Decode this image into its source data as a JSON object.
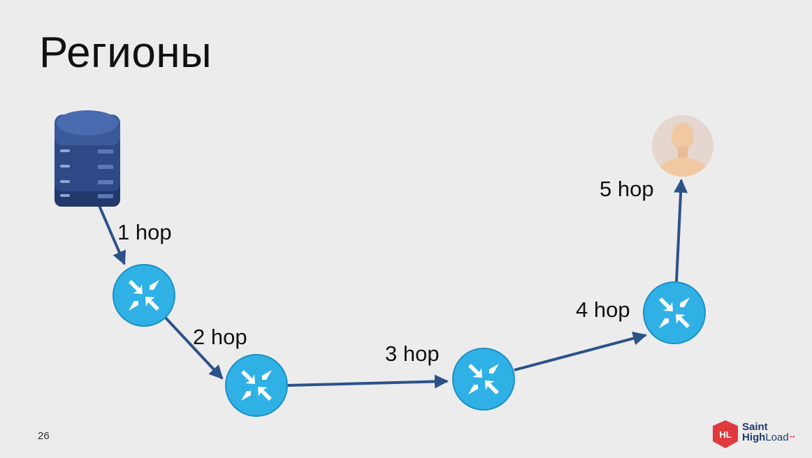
{
  "slide": {
    "title": "Регионы",
    "page_number": "26"
  },
  "diagram": {
    "nodes": [
      {
        "id": "server",
        "kind": "server-icon"
      },
      {
        "id": "router-1",
        "kind": "router-icon"
      },
      {
        "id": "router-2",
        "kind": "router-icon"
      },
      {
        "id": "router-3",
        "kind": "router-icon"
      },
      {
        "id": "router-4",
        "kind": "router-icon"
      },
      {
        "id": "user",
        "kind": "user-avatar-icon"
      }
    ],
    "edges": [
      {
        "from": "server",
        "to": "router-1",
        "label": "1 hop"
      },
      {
        "from": "router-1",
        "to": "router-2",
        "label": "2 hop"
      },
      {
        "from": "router-2",
        "to": "router-3",
        "label": "3 hop"
      },
      {
        "from": "router-3",
        "to": "router-4",
        "label": "4 hop"
      },
      {
        "from": "router-4",
        "to": "user",
        "label": "5 hop"
      }
    ]
  },
  "logo": {
    "badge": "HL",
    "line1": "Saint",
    "line2_bold": "High",
    "line2_thin": "Load",
    "suffix": "++"
  },
  "colors": {
    "arrow": "#2d5289",
    "router_fill": "#2fb1e6",
    "server_fill": "#2e4a86",
    "logo_red": "#e03a3e"
  }
}
